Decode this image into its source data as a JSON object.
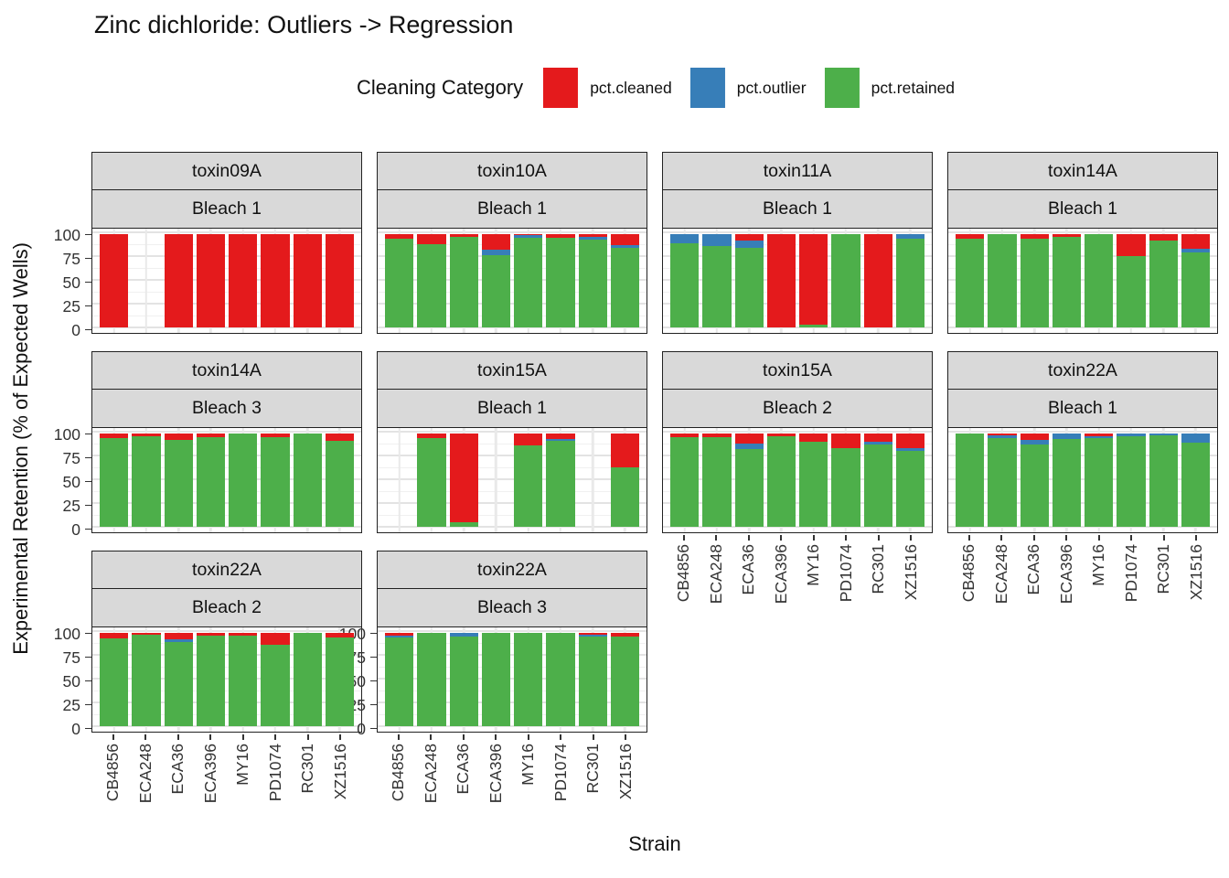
{
  "title": "Zinc dichloride: Outliers -> Regression",
  "legend": {
    "title": "Cleaning Category",
    "items": [
      {
        "label": "pct.cleaned",
        "color": "#E41A1C"
      },
      {
        "label": "pct.outlier",
        "color": "#377EB8"
      },
      {
        "label": "pct.retained",
        "color": "#4DAF4A"
      }
    ]
  },
  "axes": {
    "x_title": "Strain",
    "y_title": "Experimental Retention (% of Expected Wells)",
    "y_ticks": [
      100,
      75,
      50,
      25,
      0
    ],
    "strains": [
      "CB4856",
      "ECA248",
      "ECA36",
      "ECA396",
      "MY16",
      "PD1074",
      "RC301",
      "XZ1516"
    ]
  },
  "chart_data": {
    "type": "bar",
    "stacked": true,
    "title": "Zinc dichloride: Outliers -> Regression",
    "xlabel": "Strain",
    "ylabel": "Experimental Retention (% of Expected Wells)",
    "ylim": [
      0,
      100
    ],
    "grid": true,
    "legend_position": "top",
    "series_names": [
      "pct.cleaned",
      "pct.outlier",
      "pct.retained"
    ],
    "colors": {
      "cleaned": "#E41A1C",
      "outlier": "#377EB8",
      "retained": "#4DAF4A"
    },
    "strip_bg": "#D9D9D9",
    "categories": [
      "CB4856",
      "ECA248",
      "ECA36",
      "ECA396",
      "MY16",
      "PD1074",
      "RC301",
      "XZ1516"
    ],
    "facets": [
      {
        "toxin": "toxin09A",
        "bleach": "Bleach 1",
        "row": 1,
        "col": 1,
        "show_y": true,
        "show_x": false,
        "bars": [
          {
            "retained": 0,
            "outlier": 0,
            "cleaned": 100
          },
          null,
          {
            "retained": 0,
            "outlier": 0,
            "cleaned": 100
          },
          {
            "retained": 0,
            "outlier": 0,
            "cleaned": 100
          },
          {
            "retained": 0,
            "outlier": 0,
            "cleaned": 100
          },
          {
            "retained": 0,
            "outlier": 0,
            "cleaned": 100
          },
          {
            "retained": 0,
            "outlier": 0,
            "cleaned": 100
          },
          {
            "retained": 0,
            "outlier": 0,
            "cleaned": 100
          }
        ]
      },
      {
        "toxin": "toxin10A",
        "bleach": "Bleach 1",
        "row": 1,
        "col": 2,
        "show_y": false,
        "show_x": false,
        "bars": [
          {
            "retained": 95,
            "outlier": 0,
            "cleaned": 5
          },
          {
            "retained": 89,
            "outlier": 0,
            "cleaned": 11
          },
          {
            "retained": 97,
            "outlier": 0,
            "cleaned": 3
          },
          {
            "retained": 77,
            "outlier": 6,
            "cleaned": 17
          },
          {
            "retained": 96,
            "outlier": 3,
            "cleaned": 1
          },
          {
            "retained": 96,
            "outlier": 0,
            "cleaned": 4
          },
          {
            "retained": 94,
            "outlier": 3,
            "cleaned": 3
          },
          {
            "retained": 85,
            "outlier": 3,
            "cleaned": 12
          }
        ]
      },
      {
        "toxin": "toxin11A",
        "bleach": "Bleach 1",
        "row": 1,
        "col": 3,
        "show_y": false,
        "show_x": false,
        "bars": [
          {
            "retained": 90,
            "outlier": 10,
            "cleaned": 0
          },
          {
            "retained": 87,
            "outlier": 13,
            "cleaned": 0
          },
          {
            "retained": 85,
            "outlier": 8,
            "cleaned": 7
          },
          {
            "retained": 0,
            "outlier": 0,
            "cleaned": 100
          },
          {
            "retained": 3,
            "outlier": 0,
            "cleaned": 97
          },
          {
            "retained": 100,
            "outlier": 0,
            "cleaned": 0
          },
          {
            "retained": 0,
            "outlier": 0,
            "cleaned": 100
          },
          {
            "retained": 95,
            "outlier": 5,
            "cleaned": 0
          }
        ]
      },
      {
        "toxin": "toxin14A",
        "bleach": "Bleach 1",
        "row": 1,
        "col": 4,
        "show_y": false,
        "show_x": false,
        "bars": [
          {
            "retained": 95,
            "outlier": 0,
            "cleaned": 5
          },
          {
            "retained": 100,
            "outlier": 0,
            "cleaned": 0
          },
          {
            "retained": 95,
            "outlier": 0,
            "cleaned": 5
          },
          {
            "retained": 97,
            "outlier": 0,
            "cleaned": 3
          },
          {
            "retained": 100,
            "outlier": 0,
            "cleaned": 0
          },
          {
            "retained": 76,
            "outlier": 0,
            "cleaned": 24
          },
          {
            "retained": 93,
            "outlier": 0,
            "cleaned": 7
          },
          {
            "retained": 80,
            "outlier": 4,
            "cleaned": 16
          }
        ]
      },
      {
        "toxin": "toxin14A",
        "bleach": "Bleach 3",
        "row": 2,
        "col": 1,
        "show_y": true,
        "show_x": false,
        "bars": [
          {
            "retained": 95,
            "outlier": 0,
            "cleaned": 5
          },
          {
            "retained": 97,
            "outlier": 0,
            "cleaned": 3
          },
          {
            "retained": 93,
            "outlier": 0,
            "cleaned": 7
          },
          {
            "retained": 96,
            "outlier": 0,
            "cleaned": 4
          },
          {
            "retained": 100,
            "outlier": 0,
            "cleaned": 0
          },
          {
            "retained": 96,
            "outlier": 0,
            "cleaned": 4
          },
          {
            "retained": 100,
            "outlier": 0,
            "cleaned": 0
          },
          {
            "retained": 92,
            "outlier": 0,
            "cleaned": 8
          }
        ]
      },
      {
        "toxin": "toxin15A",
        "bleach": "Bleach 1",
        "row": 2,
        "col": 2,
        "show_y": false,
        "show_x": false,
        "bars": [
          null,
          {
            "retained": 95,
            "outlier": 0,
            "cleaned": 5
          },
          {
            "retained": 5,
            "outlier": 0,
            "cleaned": 95
          },
          null,
          {
            "retained": 87,
            "outlier": 0,
            "cleaned": 13
          },
          {
            "retained": 92,
            "outlier": 2,
            "cleaned": 6
          },
          null,
          {
            "retained": 64,
            "outlier": 0,
            "cleaned": 36
          }
        ]
      },
      {
        "toxin": "toxin15A",
        "bleach": "Bleach 2",
        "row": 2,
        "col": 3,
        "show_y": false,
        "show_x": true,
        "bars": [
          {
            "retained": 96,
            "outlier": 0,
            "cleaned": 4
          },
          {
            "retained": 96,
            "outlier": 0,
            "cleaned": 4
          },
          {
            "retained": 83,
            "outlier": 6,
            "cleaned": 11
          },
          {
            "retained": 97,
            "outlier": 0,
            "cleaned": 3
          },
          {
            "retained": 91,
            "outlier": 0,
            "cleaned": 9
          },
          {
            "retained": 84,
            "outlier": 0,
            "cleaned": 16
          },
          {
            "retained": 88,
            "outlier": 3,
            "cleaned": 9
          },
          {
            "retained": 81,
            "outlier": 3,
            "cleaned": 16
          }
        ]
      },
      {
        "toxin": "toxin22A",
        "bleach": "Bleach 1",
        "row": 2,
        "col": 4,
        "show_y": false,
        "show_x": true,
        "bars": [
          {
            "retained": 100,
            "outlier": 0,
            "cleaned": 0
          },
          {
            "retained": 95,
            "outlier": 3,
            "cleaned": 2
          },
          {
            "retained": 88,
            "outlier": 5,
            "cleaned": 7
          },
          {
            "retained": 94,
            "outlier": 6,
            "cleaned": 0
          },
          {
            "retained": 95,
            "outlier": 2,
            "cleaned": 3
          },
          {
            "retained": 97,
            "outlier": 3,
            "cleaned": 0
          },
          {
            "retained": 98,
            "outlier": 2,
            "cleaned": 0
          },
          {
            "retained": 90,
            "outlier": 10,
            "cleaned": 0
          }
        ]
      },
      {
        "toxin": "toxin22A",
        "bleach": "Bleach 2",
        "row": 3,
        "col": 1,
        "show_y": true,
        "show_x": true,
        "bars": [
          {
            "retained": 94,
            "outlier": 0,
            "cleaned": 6
          },
          {
            "retained": 98,
            "outlier": 0,
            "cleaned": 2
          },
          {
            "retained": 90,
            "outlier": 3,
            "cleaned": 7
          },
          {
            "retained": 97,
            "outlier": 0,
            "cleaned": 3
          },
          {
            "retained": 97,
            "outlier": 0,
            "cleaned": 3
          },
          {
            "retained": 87,
            "outlier": 0,
            "cleaned": 13
          },
          {
            "retained": 100,
            "outlier": 0,
            "cleaned": 0
          },
          {
            "retained": 95,
            "outlier": 0,
            "cleaned": 5
          }
        ]
      },
      {
        "toxin": "toxin22A",
        "bleach": "Bleach 3",
        "row": 3,
        "col": 2,
        "show_y": true,
        "show_x": true,
        "bars": [
          {
            "retained": 95,
            "outlier": 2,
            "cleaned": 3
          },
          {
            "retained": 100,
            "outlier": 0,
            "cleaned": 0
          },
          {
            "retained": 96,
            "outlier": 4,
            "cleaned": 0
          },
          {
            "retained": 100,
            "outlier": 0,
            "cleaned": 0
          },
          {
            "retained": 100,
            "outlier": 0,
            "cleaned": 0
          },
          {
            "retained": 100,
            "outlier": 0,
            "cleaned": 0
          },
          {
            "retained": 96,
            "outlier": 2,
            "cleaned": 2
          },
          {
            "retained": 96,
            "outlier": 0,
            "cleaned": 4
          }
        ]
      }
    ]
  }
}
